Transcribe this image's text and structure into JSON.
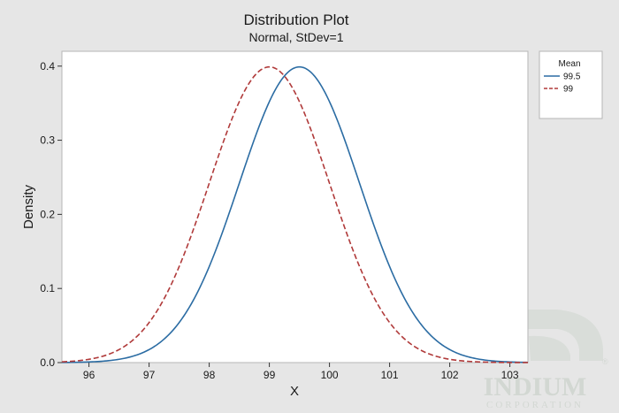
{
  "chart_data": {
    "type": "line",
    "title": "Distribution Plot",
    "subtitle": "Normal, StDev=1",
    "xlabel": "X",
    "ylabel": "Density",
    "xlim": [
      95.55,
      103.3
    ],
    "ylim": [
      0,
      0.42
    ],
    "xticks": [
      96,
      97,
      98,
      99,
      100,
      101,
      102,
      103
    ],
    "yticks": [
      0.0,
      0.1,
      0.2,
      0.3,
      0.4
    ],
    "ytick_labels": [
      "0.0",
      "0.1",
      "0.2",
      "0.3",
      "0.4"
    ],
    "grid": false,
    "legend": {
      "title": "Mean",
      "placement": "right"
    },
    "series": [
      {
        "name": "99.5",
        "mean": 99.5,
        "stdev": 1,
        "color": "#2b6ca3",
        "style": "solid"
      },
      {
        "name": "99",
        "mean": 99,
        "stdev": 1,
        "color": "#b03a3a",
        "style": "dashed"
      }
    ]
  },
  "watermark": {
    "brand": "INDIUM",
    "sub": "CORPORATION",
    "mark": "®"
  }
}
